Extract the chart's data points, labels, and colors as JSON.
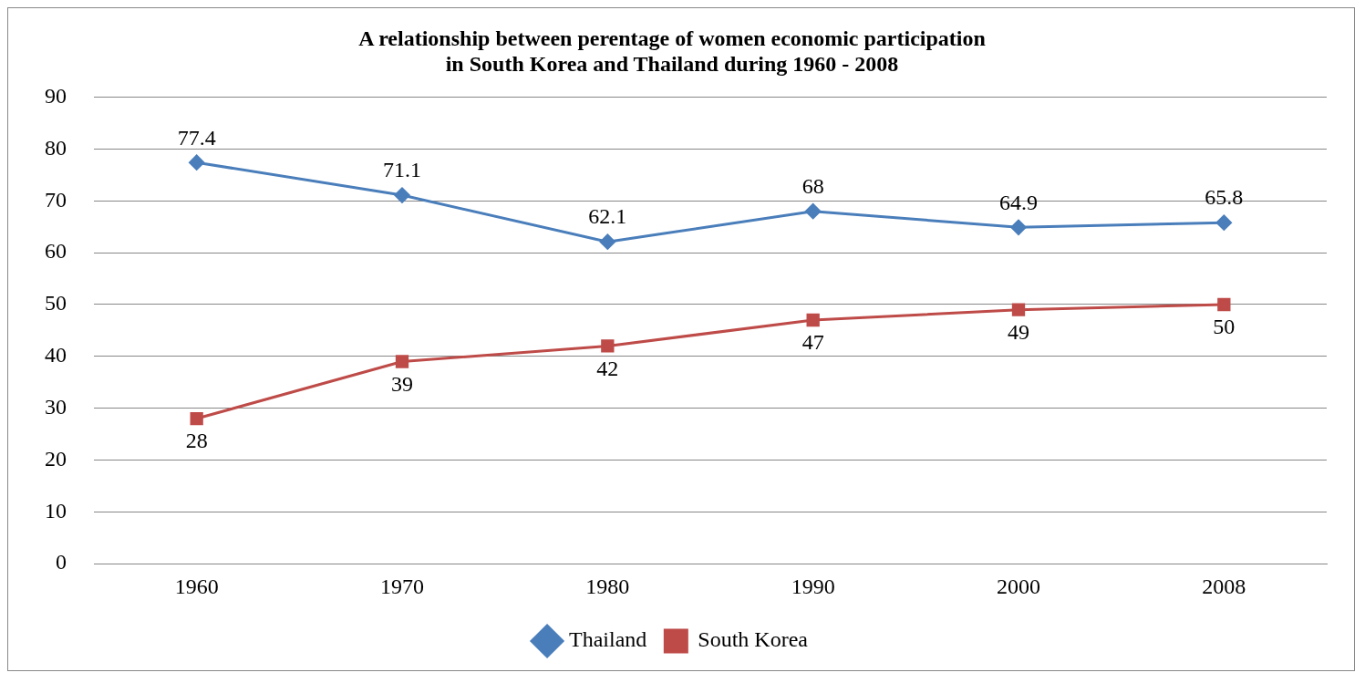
{
  "chart_data": {
    "type": "line",
    "title": "A relationship between perentage of women economic participation\nin South Korea and Thailand during 1960 - 2008",
    "categories": [
      "1960",
      "1970",
      "1980",
      "1990",
      "2000",
      "2008"
    ],
    "series": [
      {
        "name": "Thailand",
        "color": "#4a7ebb",
        "marker": "diamond",
        "values": [
          77.4,
          71.1,
          62.1,
          68,
          64.9,
          65.8
        ]
      },
      {
        "name": "South Korea",
        "color": "#be4b48",
        "marker": "square",
        "values": [
          28,
          39,
          42,
          47,
          49,
          50
        ]
      }
    ],
    "ylim": [
      0,
      90
    ],
    "yticks": [
      0,
      10,
      20,
      30,
      40,
      50,
      60,
      70,
      80,
      90
    ],
    "grid": "y",
    "legend": "bottom",
    "data_labels": true,
    "line_style": "solid"
  }
}
